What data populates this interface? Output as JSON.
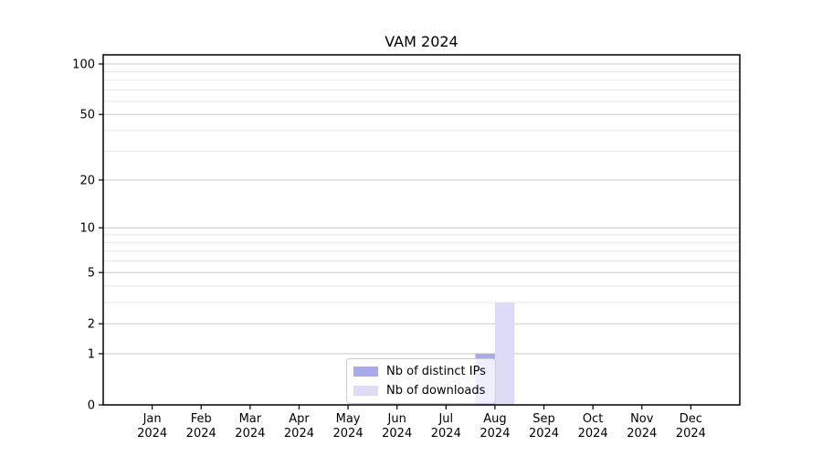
{
  "chart_data": {
    "type": "bar",
    "title": "VAM 2024",
    "categories": [
      {
        "month": "Jan",
        "year": "2024"
      },
      {
        "month": "Feb",
        "year": "2024"
      },
      {
        "month": "Mar",
        "year": "2024"
      },
      {
        "month": "Apr",
        "year": "2024"
      },
      {
        "month": "May",
        "year": "2024"
      },
      {
        "month": "Jun",
        "year": "2024"
      },
      {
        "month": "Jul",
        "year": "2024"
      },
      {
        "month": "Aug",
        "year": "2024"
      },
      {
        "month": "Sep",
        "year": "2024"
      },
      {
        "month": "Oct",
        "year": "2024"
      },
      {
        "month": "Nov",
        "year": "2024"
      },
      {
        "month": "Dec",
        "year": "2024"
      }
    ],
    "series": [
      {
        "name": "Nb of distinct IPs",
        "color": "#a9a9ed",
        "values": [
          0,
          0,
          0,
          0,
          0,
          0,
          0,
          1,
          0,
          0,
          0,
          0
        ]
      },
      {
        "name": "Nb of downloads",
        "color": "#dcdcf7",
        "values": [
          0,
          0,
          0,
          0,
          0,
          0,
          0,
          3,
          0,
          0,
          0,
          0
        ]
      }
    ],
    "xlabel": "",
    "ylabel": "",
    "yscale": "log1p",
    "ylim": [
      0,
      100
    ],
    "y_ticks": [
      0,
      1,
      2,
      5,
      10,
      20,
      50,
      100
    ],
    "y_minor_ticks": [
      3,
      4,
      6,
      7,
      8,
      9,
      30,
      40,
      60,
      70,
      80,
      90
    ],
    "grid": "horizontal-major-and-minor",
    "legend_position": "lower center",
    "colors": {
      "major_gridline": "#c9c9c9",
      "minor_gridline": "#e6e6e6",
      "spine": "#000000",
      "text": "#000000"
    }
  }
}
